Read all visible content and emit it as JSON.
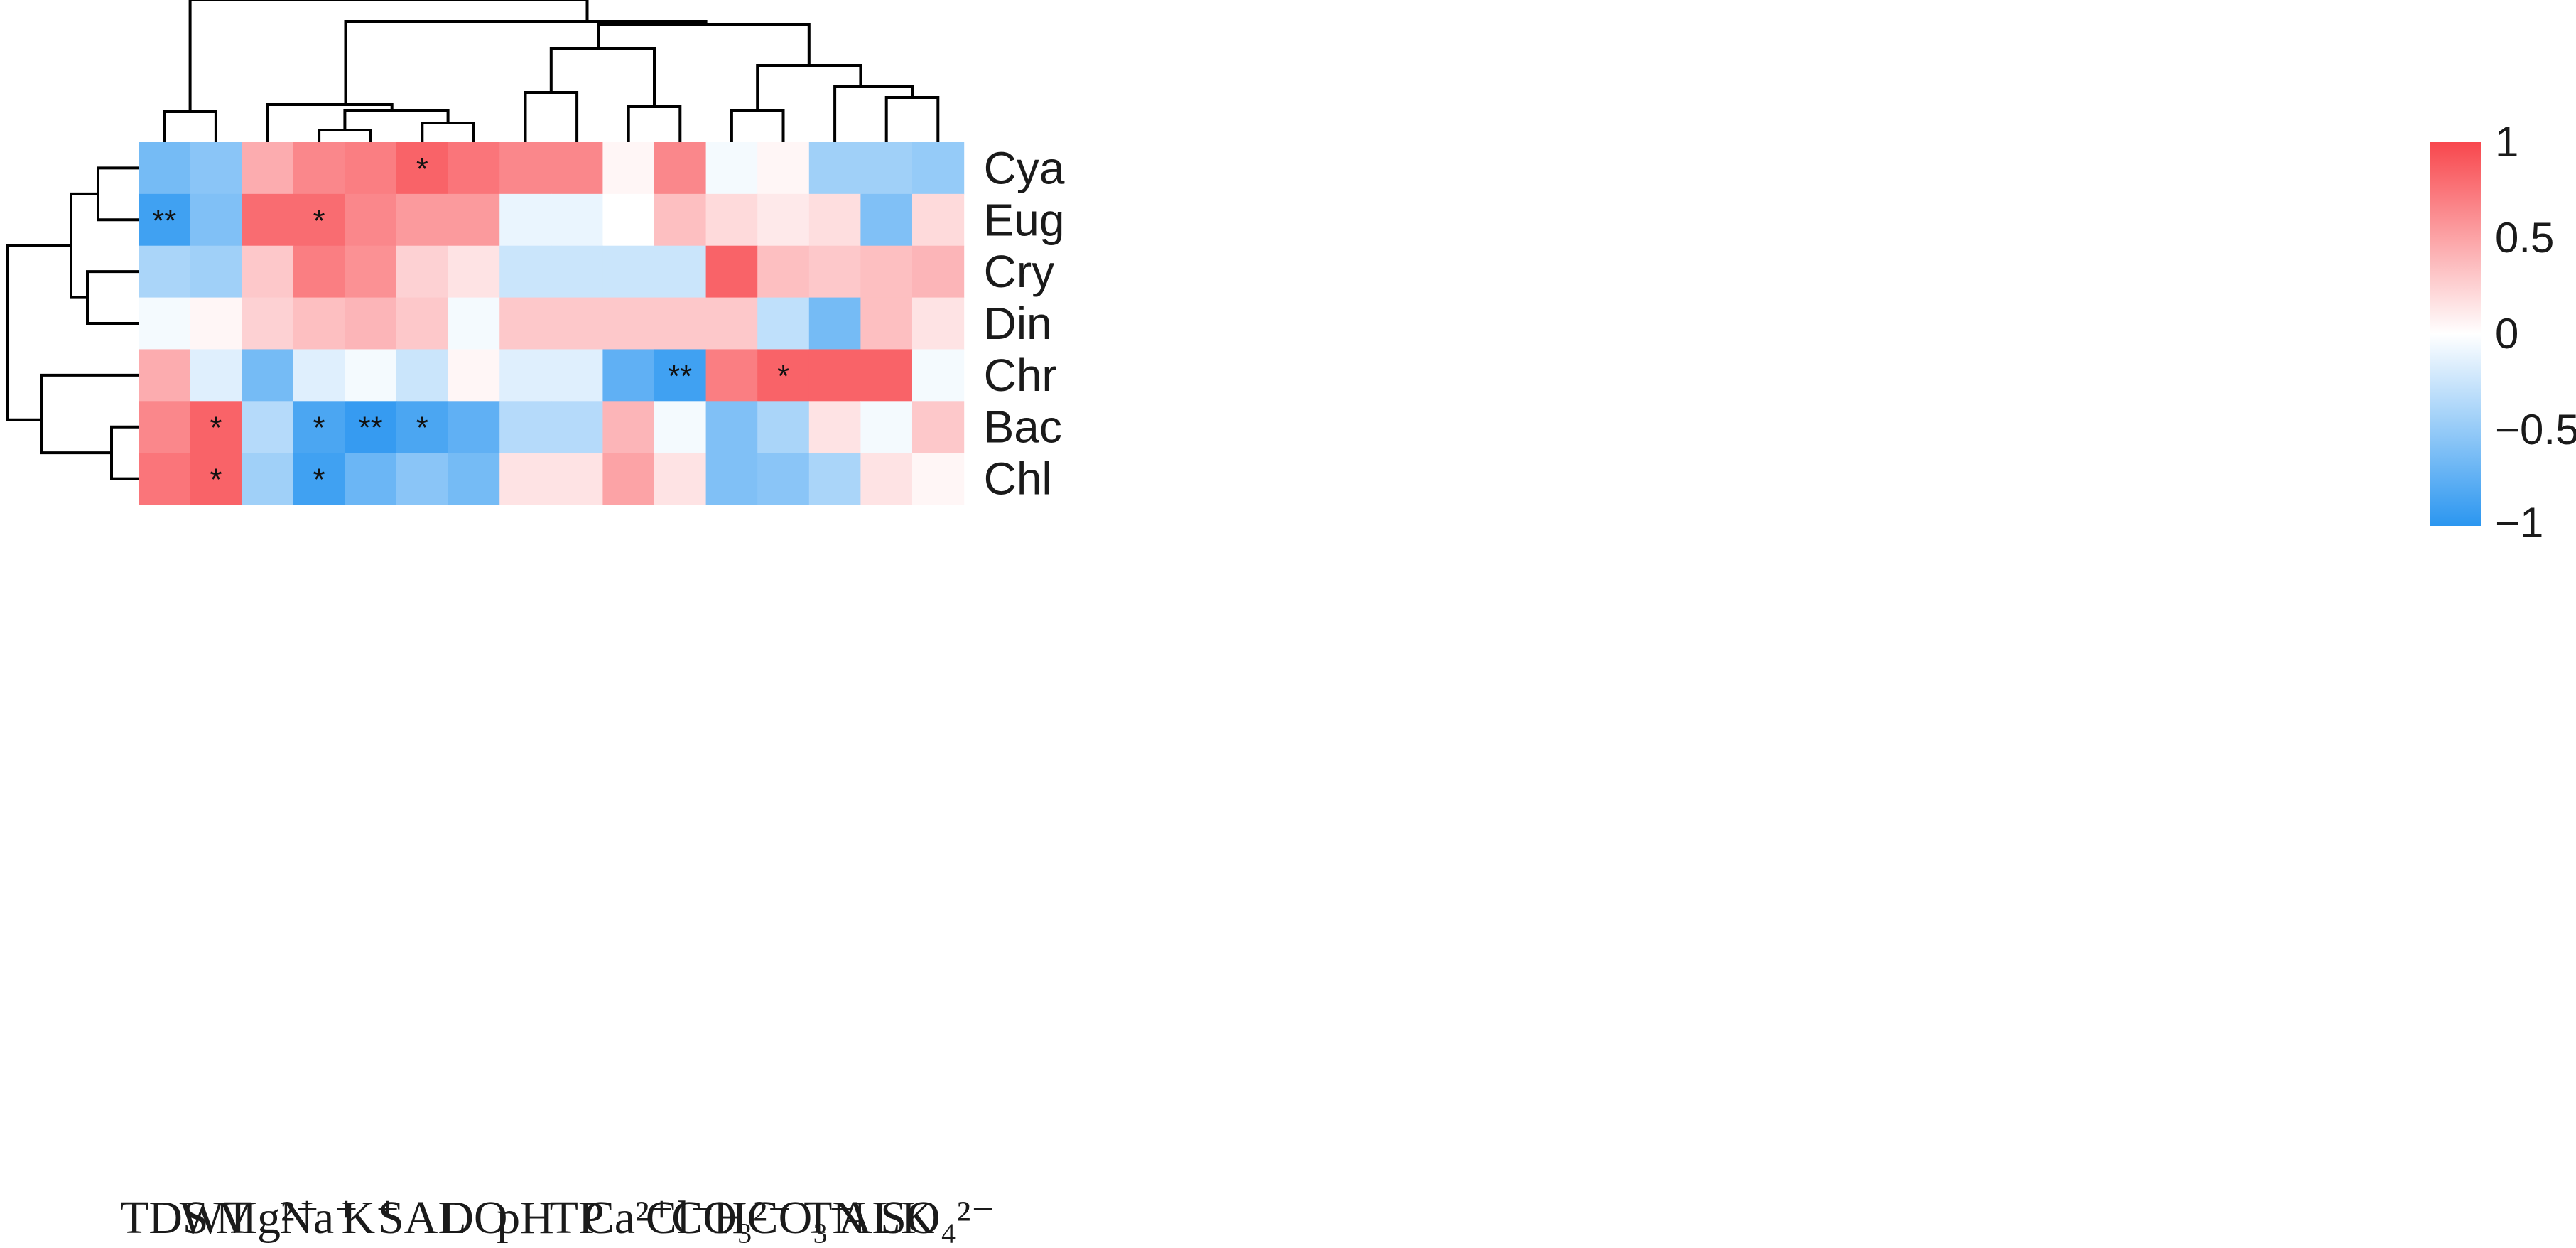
{
  "chart_data": {
    "type": "heatmap",
    "title": "",
    "columns": [
      "TDS",
      "WT",
      "Mg²⁺",
      "Na⁺",
      "K⁺",
      "SAL",
      "DO",
      "pH",
      "TP",
      "Ca²⁺",
      "Cl⁻",
      "CO₃²⁻",
      "HCO₃⁻",
      "TN",
      "ALK",
      "SO₄²⁻"
    ],
    "rows": [
      "Cya",
      "Eug",
      "Cry",
      "Din",
      "Chr",
      "Bac",
      "Chl"
    ],
    "values": [
      [
        -0.65,
        -0.55,
        0.45,
        0.65,
        0.7,
        0.85,
        0.75,
        0.65,
        0.65,
        0.05,
        0.65,
        -0.05,
        0.05,
        -0.45,
        -0.45,
        -0.5
      ],
      [
        -0.9,
        -0.6,
        0.8,
        0.8,
        0.65,
        0.55,
        0.55,
        -0.1,
        -0.1,
        0.0,
        0.35,
        0.2,
        0.12,
        0.18,
        -0.6,
        0.2
      ],
      [
        -0.4,
        -0.45,
        0.3,
        0.7,
        0.6,
        0.25,
        0.15,
        -0.25,
        -0.25,
        -0.25,
        -0.25,
        0.85,
        0.35,
        0.3,
        0.35,
        0.4
      ],
      [
        -0.05,
        0.05,
        0.25,
        0.35,
        0.4,
        0.3,
        -0.05,
        0.3,
        0.3,
        0.3,
        0.3,
        0.3,
        -0.3,
        -0.65,
        0.35,
        0.15
      ],
      [
        0.45,
        -0.15,
        -0.65,
        -0.15,
        -0.05,
        -0.25,
        0.05,
        -0.15,
        -0.15,
        -0.75,
        -0.9,
        0.7,
        0.85,
        0.85,
        0.85,
        -0.05
      ],
      [
        0.65,
        0.85,
        -0.35,
        -0.85,
        -0.95,
        -0.85,
        -0.75,
        -0.35,
        -0.35,
        0.4,
        -0.05,
        -0.6,
        -0.4,
        0.15,
        -0.05,
        0.3
      ],
      [
        0.75,
        0.85,
        -0.45,
        -0.9,
        -0.7,
        -0.55,
        -0.65,
        0.15,
        0.15,
        0.5,
        0.15,
        -0.6,
        -0.55,
        -0.4,
        0.15,
        0.05
      ]
    ],
    "annotations": [
      [
        0,
        5,
        "*"
      ],
      [
        1,
        0,
        "**"
      ],
      [
        1,
        3,
        "*"
      ],
      [
        4,
        10,
        "**"
      ],
      [
        4,
        12,
        "*"
      ],
      [
        5,
        1,
        "*"
      ],
      [
        5,
        3,
        "*"
      ],
      [
        5,
        4,
        "**"
      ],
      [
        5,
        5,
        "*"
      ],
      [
        6,
        1,
        "*"
      ],
      [
        6,
        3,
        "*"
      ]
    ],
    "colorbar": {
      "min": -1,
      "max": 1,
      "ticks": [
        1,
        0.5,
        0,
        -0.5,
        -1
      ],
      "tick_labels": [
        "1",
        "0.5",
        "0",
        "−0.5",
        "−1"
      ]
    },
    "colors": {
      "negative": "#2b96f0",
      "zero": "#ffffff",
      "positive": "#f8474d"
    },
    "dendrogram": "hierarchical clustering of rows (left) and columns (top)"
  }
}
